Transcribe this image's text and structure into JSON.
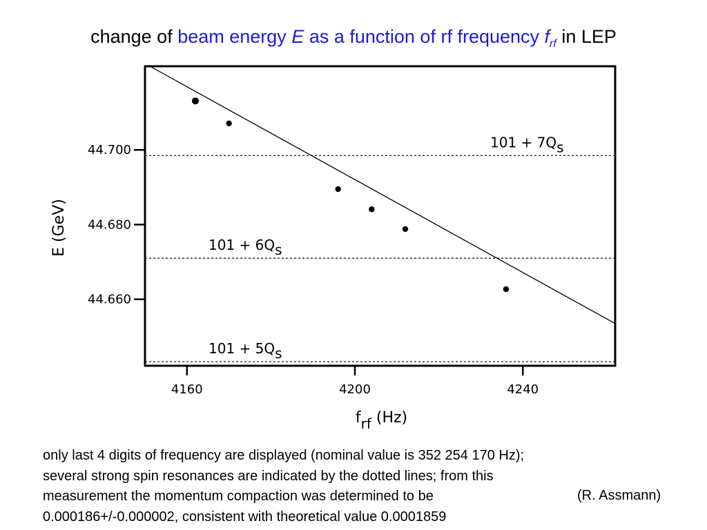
{
  "title": {
    "part1": "change of ",
    "part2": "beam energy ",
    "part3": "E",
    "part4": " as a function of rf frequency ",
    "part5": "f",
    "part5_sub": "rf",
    "part6": " in LEP"
  },
  "caption": {
    "line1": "only last 4 digits of frequency are displayed (nominal value is 352 254 170 Hz);",
    "line2": "several strong spin resonances are indicated by the dotted lines; from this",
    "line3": "measurement the momentum compaction was determined to be",
    "line4": "0.000186+/-0.000002, consistent with theoretical value 0.0001859",
    "credit": "(R. Assmann)"
  },
  "chart_data": {
    "type": "scatter",
    "title": "",
    "xlabel": "f",
    "xlabel_sub": "rf",
    "xlabel_unit": " (Hz)",
    "ylabel": "E (GeV)",
    "xlim": [
      4150,
      4262
    ],
    "ylim": [
      44.6422,
      44.7224
    ],
    "x_ticks": [
      4160,
      4200,
      4240
    ],
    "x_tick_labels": [
      "4160",
      "4200",
      "4240"
    ],
    "y_ticks": [
      44.66,
      44.68,
      44.7
    ],
    "y_tick_labels": [
      "44.660",
      "44.680",
      "44.700"
    ],
    "grid": false,
    "points": [
      {
        "x": 4162,
        "y": 44.7131
      },
      {
        "x": 4170,
        "y": 44.7071
      },
      {
        "x": 4196,
        "y": 44.6895
      },
      {
        "x": 4204,
        "y": 44.6841
      },
      {
        "x": 4212,
        "y": 44.6788
      },
      {
        "x": 4236,
        "y": 44.6627
      }
    ],
    "fit_line": [
      {
        "x": 4151.5,
        "y": 44.7222
      },
      {
        "x": 4262,
        "y": 44.6535
      }
    ],
    "resonances": [
      {
        "prefix": "101 + 5Q",
        "sub": "s",
        "y": 44.6433
      },
      {
        "prefix": "101 + 6Q",
        "sub": "s",
        "y": 44.671
      },
      {
        "prefix": "101 + 7Q",
        "sub": "s",
        "y": 44.6985
      }
    ]
  }
}
